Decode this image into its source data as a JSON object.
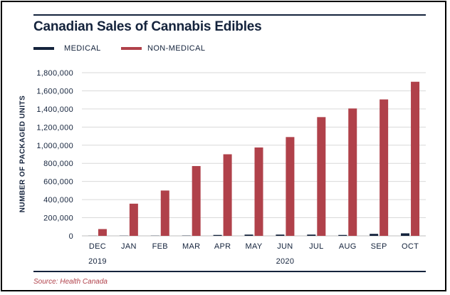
{
  "colors": {
    "medical": "#14233c",
    "non_medical": "#b0414a",
    "text": "#14233c",
    "grid": "#d9d9d9",
    "source": "#b0414a"
  },
  "chart_data": {
    "type": "bar",
    "title": "Canadian Sales of Cannabis Edibles",
    "xlabel": "",
    "ylabel": "NUMBER OF PACKAGED UNITS",
    "categories": [
      "DEC",
      "JAN",
      "FEB",
      "MAR",
      "APR",
      "MAY",
      "JUN",
      "JUL",
      "AUG",
      "SEP",
      "OCT"
    ],
    "year_labels": [
      {
        "text": "2019",
        "category": "DEC"
      },
      {
        "text": "2020",
        "category": "JUN"
      }
    ],
    "series": [
      {
        "name": "MEDICAL",
        "values": [
          1000,
          2000,
          2000,
          3000,
          10000,
          14000,
          14000,
          14000,
          10000,
          22000,
          28000
        ]
      },
      {
        "name": "NON-MEDICAL",
        "values": [
          75000,
          355000,
          500000,
          770000,
          900000,
          975000,
          1090000,
          1310000,
          1405000,
          1505000,
          1700000
        ]
      }
    ],
    "ylim": [
      0,
      1800000
    ],
    "yticks": [
      0,
      200000,
      400000,
      600000,
      800000,
      1000000,
      1200000,
      1400000,
      1600000,
      1800000
    ],
    "ytick_labels": [
      "0",
      "200,000",
      "400,000",
      "600,000",
      "800,000",
      "1,000,000",
      "1,200,000",
      "1,400,000",
      "1,600,000",
      "1,800,000"
    ],
    "grid": true,
    "legend_position": "top-left"
  },
  "source": "Source: Health Canada"
}
